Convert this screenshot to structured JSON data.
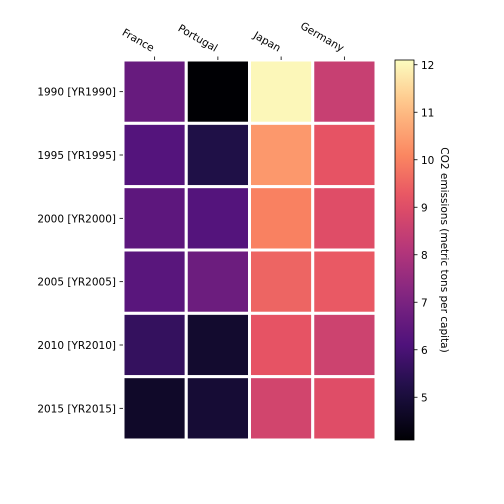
{
  "chart_data": {
    "type": "heatmap",
    "title": "",
    "columns": [
      "France",
      "Portugal",
      "Japan",
      "Germany"
    ],
    "rows": [
      "1990 [YR1990]",
      "1995 [YR1995]",
      "2000 [YR2000]",
      "2005 [YR2005]",
      "2010 [YR2010]",
      "2015 [YR2015]"
    ],
    "values": [
      [
        6.6,
        4.1,
        12.0,
        8.5
      ],
      [
        6.2,
        5.2,
        10.4,
        9.2
      ],
      [
        6.4,
        6.2,
        10.0,
        9.0
      ],
      [
        6.3,
        6.7,
        9.5,
        9.3
      ],
      [
        5.6,
        4.8,
        9.2,
        8.6
      ],
      [
        4.7,
        4.9,
        8.7,
        9.0
      ]
    ],
    "colorbar": {
      "label": "CO2 emissions (metric tons per capita)",
      "min": 4.1,
      "max": 12.1,
      "ticks": [
        5,
        6,
        7,
        8,
        9,
        10,
        11,
        12
      ],
      "colormap": "magma"
    }
  }
}
